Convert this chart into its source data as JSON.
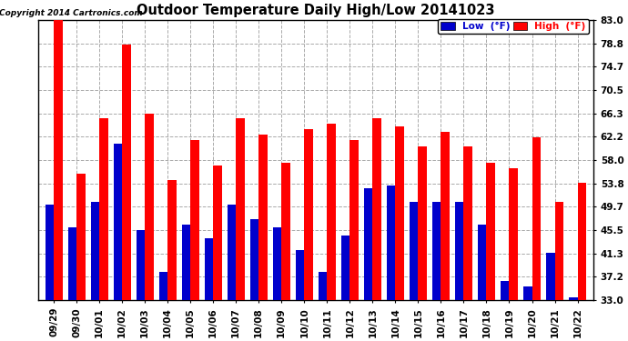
{
  "title": "Outdoor Temperature Daily High/Low 20141023",
  "copyright": "Copyright 2014 Cartronics.com",
  "categories": [
    "09/29",
    "09/30",
    "10/01",
    "10/02",
    "10/03",
    "10/04",
    "10/05",
    "10/06",
    "10/07",
    "10/08",
    "10/09",
    "10/10",
    "10/11",
    "10/12",
    "10/13",
    "10/14",
    "10/15",
    "10/16",
    "10/17",
    "10/18",
    "10/19",
    "10/20",
    "10/21",
    "10/22"
  ],
  "high": [
    83.0,
    55.5,
    65.5,
    78.5,
    66.3,
    54.5,
    61.5,
    57.0,
    65.5,
    62.5,
    57.5,
    63.5,
    64.5,
    61.5,
    65.5,
    64.0,
    60.5,
    63.0,
    60.5,
    57.5,
    56.5,
    62.0,
    50.5,
    54.0
  ],
  "low": [
    50.0,
    46.0,
    50.5,
    61.0,
    45.5,
    38.0,
    46.5,
    44.0,
    50.0,
    47.5,
    46.0,
    42.0,
    38.0,
    44.5,
    53.0,
    53.5,
    50.5,
    50.5,
    50.5,
    46.5,
    36.5,
    35.5,
    41.5,
    33.5
  ],
  "high_color": "#ff0000",
  "low_color": "#0000cc",
  "bg_color": "#ffffff",
  "grid_color": "#aaaaaa",
  "ylim_min": 33.0,
  "ylim_max": 83.0,
  "yticks": [
    33.0,
    37.2,
    41.3,
    45.5,
    49.7,
    53.8,
    58.0,
    62.2,
    66.3,
    70.5,
    74.7,
    78.8,
    83.0
  ],
  "legend_low_label": "Low  (°F)",
  "legend_high_label": "High  (°F)"
}
